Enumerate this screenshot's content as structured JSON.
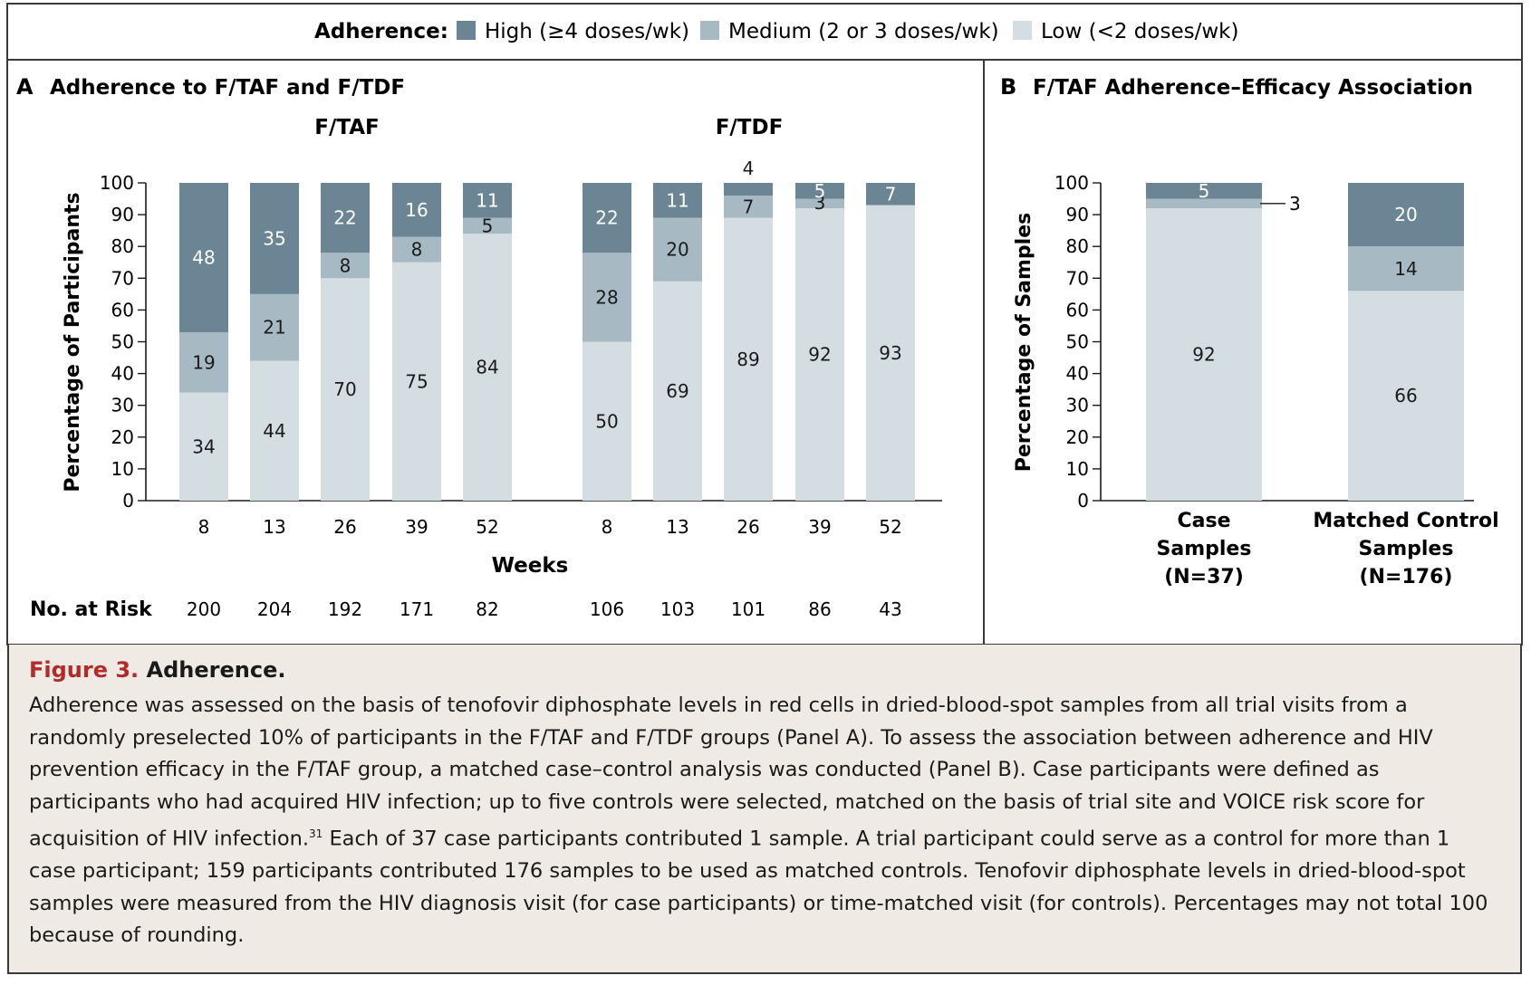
{
  "legend": {
    "title": "Adherence:",
    "items": [
      {
        "key": "high",
        "label": "High (≥4 doses/wk)",
        "color": "#6b8595"
      },
      {
        "key": "medium",
        "label": "Medium (2 or 3 doses/wk)",
        "color": "#a7bac4"
      },
      {
        "key": "low",
        "label": "Low (<2 doses/wk)",
        "color": "#d4dde1"
      }
    ]
  },
  "panelA": {
    "letter": "A",
    "title": "Adherence to F/TAF and F/TDF",
    "ylabel": "Percentage of Participants",
    "xlabel": "Weeks",
    "risk_label": "No. at Risk"
  },
  "panelB": {
    "letter": "B",
    "title": "F/TAF Adherence–Efficacy Association",
    "ylabel": "Percentage of Samples"
  },
  "chart_data": [
    {
      "type": "bar",
      "stacked": true,
      "group": "F/TAF",
      "categories": [
        "8",
        "13",
        "26",
        "39",
        "52"
      ],
      "series": [
        {
          "name": "Low (<2 doses/wk)",
          "values": [
            34,
            44,
            70,
            75,
            84
          ]
        },
        {
          "name": "Medium (2 or 3 doses/wk)",
          "values": [
            19,
            21,
            8,
            8,
            5
          ]
        },
        {
          "name": "High (≥4 doses/wk)",
          "values": [
            48,
            35,
            22,
            16,
            11
          ]
        }
      ],
      "no_at_risk": [
        200,
        204,
        192,
        171,
        82
      ],
      "xlabel": "Weeks",
      "ylabel": "Percentage of Participants",
      "ylim": [
        0,
        100
      ],
      "yticks": [
        0,
        10,
        20,
        30,
        40,
        50,
        60,
        70,
        80,
        90,
        100
      ]
    },
    {
      "type": "bar",
      "stacked": true,
      "group": "F/TDF",
      "categories": [
        "8",
        "13",
        "26",
        "39",
        "52"
      ],
      "series": [
        {
          "name": "Low (<2 doses/wk)",
          "values": [
            50,
            69,
            89,
            92,
            93
          ]
        },
        {
          "name": "Medium (2 or 3 doses/wk)",
          "values": [
            28,
            20,
            7,
            3,
            null
          ]
        },
        {
          "name": "High (≥4 doses/wk)",
          "values": [
            22,
            11,
            4,
            5,
            7
          ]
        }
      ],
      "no_at_risk": [
        106,
        103,
        101,
        86,
        43
      ],
      "xlabel": "Weeks",
      "ylabel": "Percentage of Participants",
      "ylim": [
        0,
        100
      ],
      "yticks": [
        0,
        10,
        20,
        30,
        40,
        50,
        60,
        70,
        80,
        90,
        100
      ]
    },
    {
      "type": "bar",
      "stacked": true,
      "categories": [
        "Case Samples (N=37)",
        "Matched Control Samples (N=176)"
      ],
      "category_lines": [
        [
          "Case",
          "Samples",
          "(N=37)"
        ],
        [
          "Matched Control",
          "Samples",
          "(N=176)"
        ]
      ],
      "series": [
        {
          "name": "Low (<2 doses/wk)",
          "values": [
            92,
            66
          ]
        },
        {
          "name": "Medium (2 or 3 doses/wk)",
          "values": [
            3,
            14
          ]
        },
        {
          "name": "High (≥4 doses/wk)",
          "values": [
            5,
            20
          ]
        }
      ],
      "ylabel": "Percentage of Samples",
      "ylim": [
        0,
        100
      ],
      "yticks": [
        0,
        10,
        20,
        30,
        40,
        50,
        60,
        70,
        80,
        90,
        100
      ]
    }
  ],
  "caption": {
    "label": "Figure 3.",
    "title": "Adherence.",
    "text": "Adherence was assessed on the basis of tenofovir diphosphate levels in red cells in dried-blood-spot samples from all trial visits from a randomly preselected 10% of participants in the F/TAF and F/TDF groups (Panel A). To assess the association between adherence and HIV prevention efficacy in the F/TAF group, a matched case–control analysis was conducted (Panel B). Case participants were defined as participants who had acquired HIV infection; up to five controls were selected, matched on the basis of trial site and VOICE risk score for acquisition of HIV infection.",
    "ref": "31",
    "text2": " Each of 37 case participants contributed 1 sample. A trial participant could serve as a control for more than 1 case participant; 159 participants contributed 176 samples to be used as matched controls. Tenofovir diphosphate levels in dried-blood-spot samples were measured from the HIV diagnosis visit (for case participants) or time-matched visit (for controls). Percentages may not total 100 because of rounding."
  }
}
